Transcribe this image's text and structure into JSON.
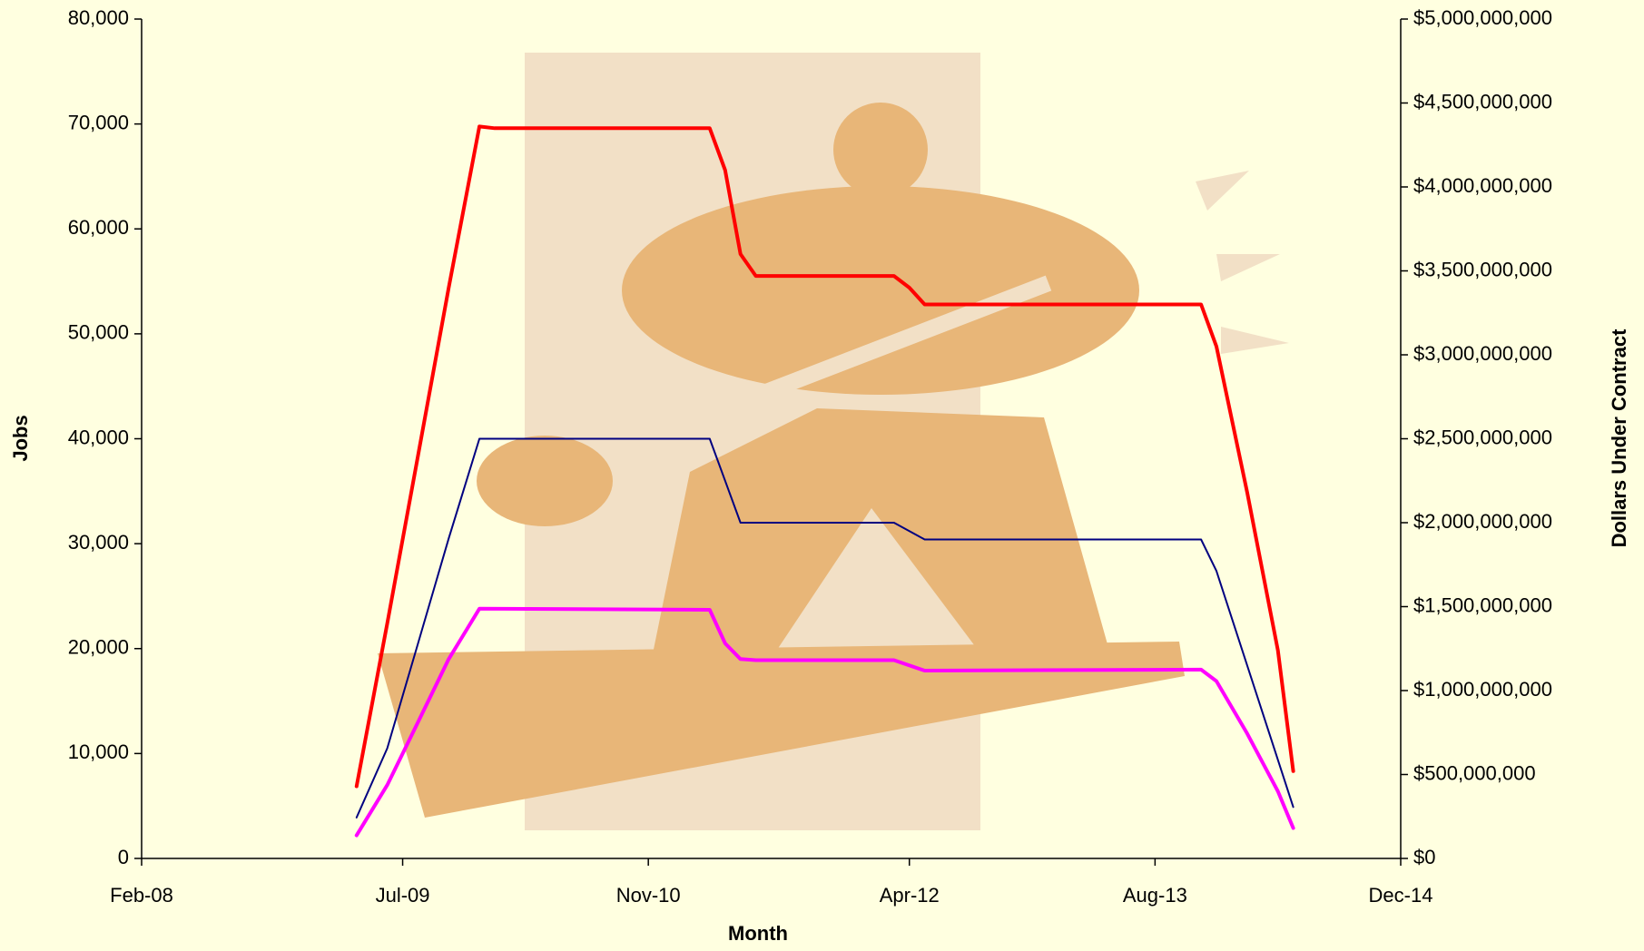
{
  "chart_data": {
    "type": "line",
    "xlabel": "Month",
    "ylabel": "Jobs",
    "y2label": "Dollars Under Contract",
    "xlim": [
      "Feb-08",
      "Dec-14"
    ],
    "xticks": [
      "Feb-08",
      "Jul-09",
      "Nov-10",
      "Apr-12",
      "Aug-13",
      "Dec-14"
    ],
    "ylim": [
      0,
      80000
    ],
    "yticks": [
      0,
      {
        "value": 10000,
        "label": "10,000"
      },
      {
        "value": 20000,
        "label": "20,000"
      },
      {
        "value": 30000,
        "label": "30,000"
      },
      {
        "value": 40000,
        "label": "40,000"
      },
      {
        "value": 50000,
        "label": "50,000"
      },
      {
        "value": 60000,
        "label": "60,000"
      },
      {
        "value": 70000,
        "label": "70,000"
      },
      {
        "value": 80000,
        "label": "80,000"
      }
    ],
    "y2lim": [
      0,
      5000000000
    ],
    "y2ticks": [
      {
        "value": 0,
        "label": "$0"
      },
      {
        "value": 500000000,
        "label": "$500,000,000"
      },
      {
        "value": 1000000000,
        "label": "$1,000,000,000"
      },
      {
        "value": 1500000000,
        "label": "$1,500,000,000"
      },
      {
        "value": 2000000000,
        "label": "$2,000,000,000"
      },
      {
        "value": 2500000000,
        "label": "$2,500,000,000"
      },
      {
        "value": 3000000000,
        "label": "$3,000,000,000"
      },
      {
        "value": 3500000000,
        "label": "$3,500,000,000"
      },
      {
        "value": 4000000000,
        "label": "$4,000,000,000"
      },
      {
        "value": 4500000000,
        "label": "$4,500,000,000"
      },
      {
        "value": 5000000000,
        "label": "$5,000,000,000"
      }
    ],
    "series": [
      {
        "color": "#ff0000",
        "axis": "y2",
        "x": [
          "Apr-09",
          "Jun-09",
          "Aug-09",
          "Oct-09",
          "Dec-09",
          "Jan-10",
          "Mar-11",
          "Apr-11",
          "May-11",
          "Jun-11",
          "Mar-12",
          "Apr-12",
          "May-12",
          "Nov-13",
          "Dec-13",
          "Feb-14",
          "Apr-14",
          "May-14"
        ],
        "values": [
          430000000,
          1400000000,
          2400000000,
          3400000000,
          4360000000,
          4350000000,
          4350000000,
          4100000000,
          3600000000,
          3470000000,
          3470000000,
          3400000000,
          3300000000,
          3300000000,
          3050000000,
          2180000000,
          1240000000,
          520000000
        ]
      },
      {
        "color": "#000080",
        "x": [
          "Apr-09",
          "Jun-09",
          "Aug-09",
          "Oct-09",
          "Dec-09",
          "Mar-11",
          "Apr-11",
          "May-11",
          "Mar-12",
          "May-12",
          "Nov-13",
          "Dec-13",
          "Mar-14",
          "May-14"
        ],
        "values": [
          3900,
          10500,
          20500,
          30500,
          40000,
          40000,
          36000,
          32000,
          32000,
          30400,
          30400,
          27400,
          13900,
          4900
        ]
      },
      {
        "color": "#ff00ff",
        "x": [
          "Apr-09",
          "Jun-09",
          "Aug-09",
          "Oct-09",
          "Dec-09",
          "Mar-11",
          "Apr-11",
          "May-11",
          "Jun-11",
          "Mar-12",
          "May-12",
          "Nov-13",
          "Dec-13",
          "Feb-14",
          "Apr-14",
          "May-14"
        ],
        "values": [
          2200,
          7000,
          13000,
          19000,
          23800,
          23700,
          20500,
          19000,
          18900,
          18900,
          17900,
          18000,
          16900,
          11900,
          6400,
          2900
        ]
      }
    ]
  }
}
